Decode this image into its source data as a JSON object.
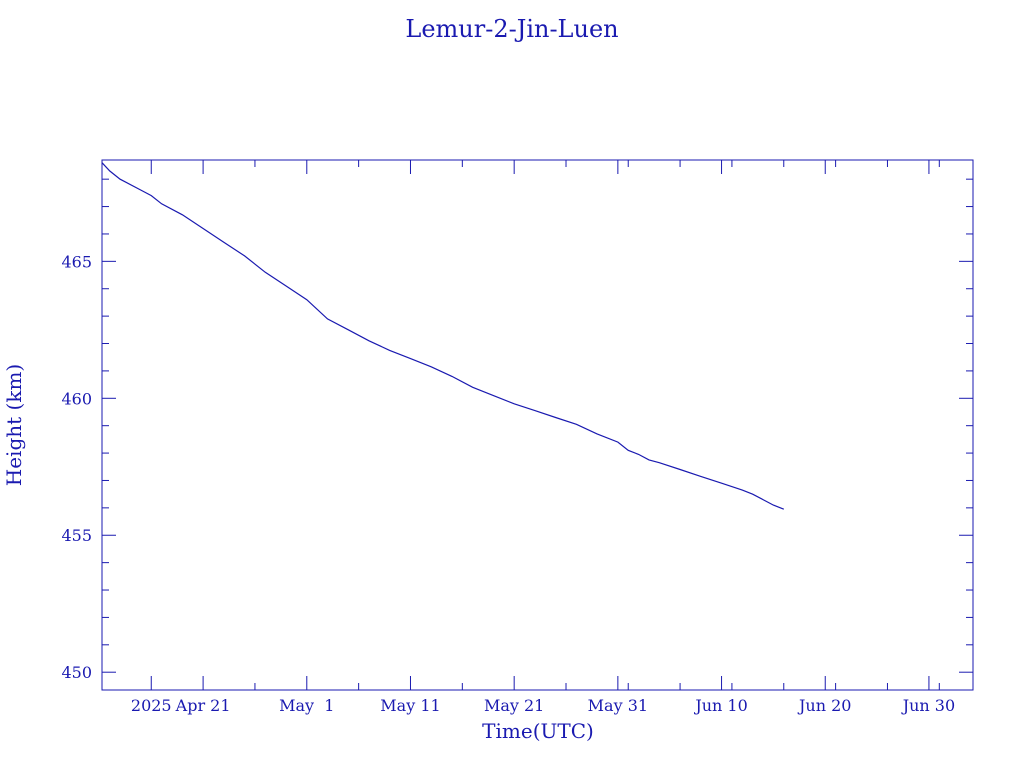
{
  "chart_data": {
    "type": "line",
    "title": "Lemur-2-Jin-Luen",
    "xlabel": "Time(UTC)",
    "ylabel": "Height (km)",
    "x_type": "date",
    "xlim": [
      "2025-04-11T06:00",
      "2025-07-04T06:00"
    ],
    "ylim": [
      449.35,
      468.7
    ],
    "x_ticks": [
      {
        "date": "2025-04-16",
        "label": "2025"
      },
      {
        "date": "2025-04-21",
        "label": "Apr 21"
      },
      {
        "date": "2025-05-01",
        "label": "May  1"
      },
      {
        "date": "2025-05-11",
        "label": "May 11"
      },
      {
        "date": "2025-05-21",
        "label": "May 21"
      },
      {
        "date": "2025-05-31",
        "label": "May 31"
      },
      {
        "date": "2025-06-10",
        "label": "Jun 10"
      },
      {
        "date": "2025-06-20",
        "label": "Jun 20"
      },
      {
        "date": "2025-06-30",
        "label": "Jun 30"
      }
    ],
    "y_ticks": [
      450,
      455,
      460,
      465
    ],
    "grid": false,
    "color": "#1a1ab0",
    "series": [
      {
        "x": [
          "2025-04-11",
          "2025-04-12",
          "2025-04-13",
          "2025-04-15",
          "2025-04-16",
          "2025-04-17",
          "2025-04-19",
          "2025-04-21",
          "2025-04-23",
          "2025-04-25",
          "2025-04-27",
          "2025-04-29",
          "2025-05-01",
          "2025-05-03",
          "2025-05-05",
          "2025-05-07",
          "2025-05-09",
          "2025-05-11",
          "2025-05-13",
          "2025-05-15",
          "2025-05-17",
          "2025-05-19",
          "2025-05-21",
          "2025-05-23",
          "2025-05-25",
          "2025-05-27",
          "2025-05-29",
          "2025-05-31",
          "2025-06-01",
          "2025-06-02",
          "2025-06-03",
          "2025-06-04",
          "2025-06-06",
          "2025-06-08",
          "2025-06-10",
          "2025-06-12",
          "2025-06-13",
          "2025-06-14",
          "2025-06-15",
          "2025-06-16"
        ],
        "y": [
          468.6,
          468.3,
          468.0,
          467.6,
          467.4,
          467.1,
          466.7,
          466.2,
          465.7,
          465.2,
          464.6,
          464.1,
          463.6,
          462.9,
          462.5,
          462.1,
          461.75,
          461.45,
          461.15,
          460.8,
          460.4,
          460.1,
          459.8,
          459.55,
          459.3,
          459.05,
          458.7,
          458.4,
          458.1,
          457.95,
          457.75,
          457.65,
          457.4,
          457.15,
          456.9,
          456.65,
          456.5,
          456.3,
          456.1,
          455.95
        ]
      }
    ]
  }
}
